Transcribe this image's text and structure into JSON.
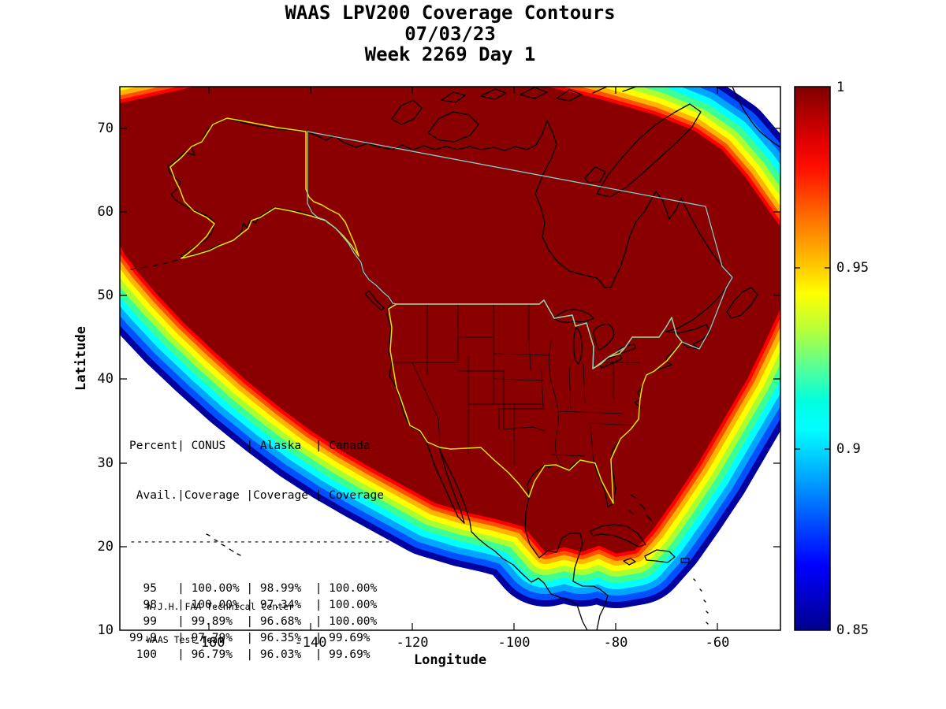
{
  "title": {
    "line1": "WAAS LPV200 Coverage Contours",
    "line2": "07/03/23",
    "line3": "Week 2269 Day 1"
  },
  "axes": {
    "xlabel": "Longitude",
    "ylabel": "Latitude",
    "x_ticks": [
      "-160",
      "-140",
      "-120",
      "-100",
      "-80",
      "-60"
    ],
    "y_ticks": [
      "70",
      "60",
      "50",
      "40",
      "30",
      "20",
      "10"
    ]
  },
  "colorbar": {
    "tick_labels": [
      "1",
      "0.95",
      "0.9",
      "0.85"
    ],
    "min": 0.85,
    "max": 1
  },
  "table": {
    "header_line1": "Percent| CONUS   | Alaska  | Canada",
    "header_line2": " Avail.|Coverage |Coverage | Coverage",
    "separator": "--------------------------------------",
    "rows": [
      {
        "percent": "95",
        "conus": "100.00%",
        "alaska": "98.99%",
        "canada": "100.00%"
      },
      {
        "percent": "98",
        "conus": "100.00%",
        "alaska": "97.34%",
        "canada": "100.00%"
      },
      {
        "percent": "99",
        "conus": "99.89%",
        "alaska": "96.68%",
        "canada": "100.00%"
      },
      {
        "percent": "99.9",
        "conus": "97.79%",
        "alaska": "96.35%",
        "canada": "99.69%"
      },
      {
        "percent": "100",
        "conus": "96.79%",
        "alaska": "96.03%",
        "canada": "99.69%"
      }
    ]
  },
  "attribution": {
    "line1": "W.J.H. FAA Technical Center",
    "line2": "WAAS Test Team"
  },
  "colors": {
    "max_fill": "#8A0000",
    "coastline": "#000000",
    "conus_outline": "#E6E600",
    "alaska_outline": "#E6E600",
    "canada_outline": "#7FCCCC",
    "colormap_top_to_bottom": [
      "#7F0000",
      "#FF0000",
      "#FF5000",
      "#FFB400",
      "#FFFF00",
      "#AAFF32",
      "#3CFF96",
      "#00FFFF",
      "#00A5FF",
      "#0050FF",
      "#0000A0",
      "#00008C"
    ]
  },
  "chart_data": {
    "type": "heatmap",
    "subtype": "filled-contour-coverage-map",
    "title": "WAAS LPV200 Coverage Contours",
    "subtitle": [
      "07/03/23",
      "Week 2269 Day 1"
    ],
    "xlabel": "Longitude",
    "ylabel": "Latitude",
    "xlim": [
      -177.5,
      -48
    ],
    "ylim": [
      10,
      75
    ],
    "x_tick_values": [
      -160,
      -140,
      -120,
      -100,
      -80,
      -60
    ],
    "y_tick_values": [
      70,
      60,
      50,
      40,
      30,
      20,
      10
    ],
    "colorbar": {
      "min": 0.85,
      "max": 1,
      "ticks": [
        1,
        0.95,
        0.9,
        0.85
      ],
      "colormap": "jet"
    },
    "regions_outlined": [
      "CONUS",
      "Alaska",
      "Canada"
    ],
    "coverage_table": {
      "columns": [
        "Percent Avail.",
        "CONUS Coverage",
        "Alaska Coverage",
        "Canada Coverage"
      ],
      "rows": [
        [
          95,
          "100.00%",
          "98.99%",
          "100.00%"
        ],
        [
          98,
          "100.00%",
          "97.34%",
          "100.00%"
        ],
        [
          99,
          "99.89%",
          "96.68%",
          "100.00%"
        ],
        [
          99.9,
          "97.79%",
          "96.35%",
          "99.69%"
        ],
        [
          100,
          "96.79%",
          "96.03%",
          "99.69%"
        ]
      ]
    }
  }
}
